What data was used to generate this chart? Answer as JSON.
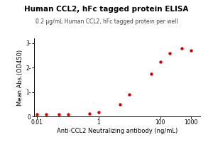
{
  "title": "Human CCL2, hFc tagged protein ELISA",
  "subtitle": "0.2 μg/mL Human CCL2, hFc tagged protein per well",
  "xlabel": "Anti-CCL2 Neutralizing antibody (ng/mL)",
  "ylabel": "Mean Abs.(OD450)",
  "x_data": [
    0.01,
    0.02,
    0.05,
    0.1,
    0.5,
    1,
    5,
    10,
    50,
    100,
    200,
    500,
    1000
  ],
  "y_data": [
    0.08,
    0.08,
    0.09,
    0.1,
    0.13,
    0.18,
    0.5,
    0.9,
    1.75,
    2.25,
    2.6,
    2.78,
    2.72
  ],
  "line_color": "#cc0000",
  "marker_color": "#cc0000",
  "background_color": "#ffffff",
  "ylim": [
    0,
    3.2
  ],
  "title_fontsize": 7.5,
  "subtitle_fontsize": 5.5,
  "label_fontsize": 6,
  "tick_fontsize": 5.5
}
